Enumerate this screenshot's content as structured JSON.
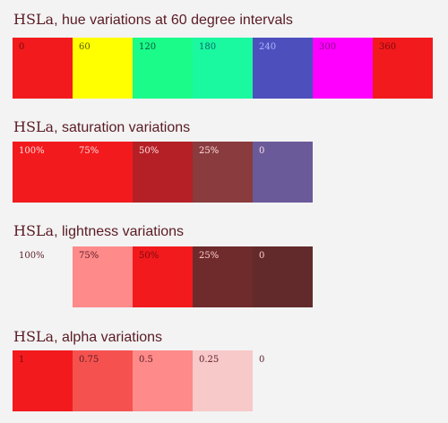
{
  "sections": [
    {
      "title_prefix": "HSLa",
      "title_suffix": ", hue variations at 60 degree intervals",
      "swatches": [
        {
          "label": "0",
          "color": "#f21a1d",
          "text_color": "#7a0a0c"
        },
        {
          "label": "60",
          "color": "#ffff00",
          "text_color": "#5a5a00"
        },
        {
          "label": "120",
          "color": "#1afb8a",
          "text_color": "#0b5a33"
        },
        {
          "label": "180",
          "color": "#1af8a0",
          "text_color": "#0b6a6a"
        },
        {
          "label": "240",
          "color": "#4d4fbd",
          "text_color": "#b0b4ff"
        },
        {
          "label": "300",
          "color": "#ff00ff",
          "text_color": "#8a0a8a"
        },
        {
          "label": "360",
          "color": "#f21a1d",
          "text_color": "#7a0a0c"
        }
      ]
    },
    {
      "title_prefix": "HSLa",
      "title_suffix": ", saturation variations",
      "swatches": [
        {
          "label": "100%",
          "color": "#f21a1d",
          "text_color": "#ffe0e0"
        },
        {
          "label": "75%",
          "color": "#f21a1d",
          "text_color": "#ffe0e0"
        },
        {
          "label": "50%",
          "color": "#b52026",
          "text_color": "#ffe0e0"
        },
        {
          "label": "25%",
          "color": "#8a3b3d",
          "text_color": "#ffe0e0"
        },
        {
          "label": "0",
          "color": "#6a5a9a",
          "text_color": "#ffe0e0"
        }
      ]
    },
    {
      "title_prefix": "HSLa",
      "title_suffix": ", lightness variations",
      "swatches": [
        {
          "label": "100%",
          "color": "#f3f3f3",
          "text_color": "#5a1b24"
        },
        {
          "label": "75%",
          "color": "#ff8a8a",
          "text_color": "#5a1b24"
        },
        {
          "label": "50%",
          "color": "#f21a1d",
          "text_color": "#7a0a0c"
        },
        {
          "label": "25%",
          "color": "#6f2a2c",
          "text_color": "#ffd0d0"
        },
        {
          "label": "0",
          "color": "#632a2b",
          "text_color": "#ffd0d0"
        }
      ]
    },
    {
      "title_prefix": "HSLa",
      "title_suffix": ", alpha variations",
      "swatches": [
        {
          "label": "1",
          "color": "#f21a1d",
          "text_color": "#7a0a0c"
        },
        {
          "label": "0.75",
          "color": "#f5524f",
          "text_color": "#5a1b24"
        },
        {
          "label": "0.5",
          "color": "#ff8a8a",
          "text_color": "#5a1b24"
        },
        {
          "label": "0.25",
          "color": "#f7c9c9",
          "text_color": "#5a1b24"
        },
        {
          "label": "0",
          "color": "#f3f3f3",
          "text_color": "#5a1b24"
        }
      ]
    }
  ]
}
